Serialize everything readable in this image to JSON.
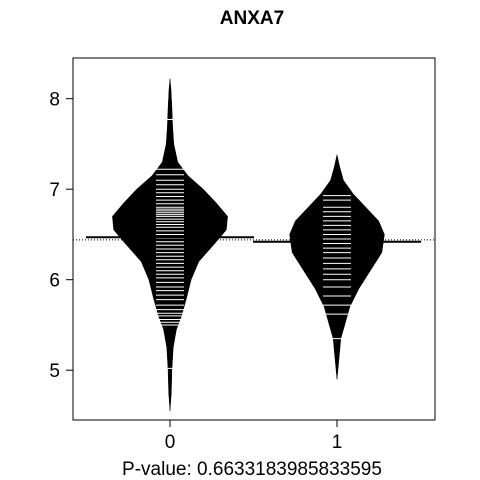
{
  "chart_data": {
    "type": "beanplot",
    "title": "ANXA7",
    "xlabel": "P-value: 0.6633183985833595",
    "ylabel": "",
    "categories": [
      "0",
      "1"
    ],
    "ylim": [
      4.45,
      8.45
    ],
    "yticks": [
      5,
      6,
      7,
      8
    ],
    "overall_mean": 6.44,
    "grid": false,
    "legend": "none",
    "groups": [
      {
        "name": "0",
        "mean": 6.47,
        "min": 4.55,
        "max": 8.22,
        "density": [
          [
            4.55,
            0.0
          ],
          [
            4.75,
            0.02
          ],
          [
            5.0,
            0.03
          ],
          [
            5.25,
            0.05
          ],
          [
            5.45,
            0.1
          ],
          [
            5.6,
            0.18
          ],
          [
            5.8,
            0.26
          ],
          [
            6.0,
            0.33
          ],
          [
            6.2,
            0.45
          ],
          [
            6.4,
            0.7
          ],
          [
            6.55,
            0.88
          ],
          [
            6.7,
            0.9
          ],
          [
            6.85,
            0.72
          ],
          [
            7.0,
            0.52
          ],
          [
            7.15,
            0.28
          ],
          [
            7.3,
            0.12
          ],
          [
            7.5,
            0.06
          ],
          [
            7.7,
            0.04
          ],
          [
            7.9,
            0.03
          ],
          [
            8.1,
            0.015
          ],
          [
            8.22,
            0.0
          ]
        ],
        "points": [
          5.02,
          5.5,
          5.53,
          5.56,
          5.6,
          5.63,
          5.67,
          5.72,
          5.78,
          5.83,
          5.88,
          5.92,
          5.97,
          6.02,
          6.06,
          6.1,
          6.14,
          6.18,
          6.22,
          6.26,
          6.3,
          6.34,
          6.38,
          6.42,
          6.46,
          6.5,
          6.54,
          6.58,
          6.61,
          6.64,
          6.67,
          6.7,
          6.72,
          6.74,
          6.76,
          6.78,
          6.8,
          6.84,
          6.88,
          6.92,
          6.96,
          7.0,
          7.05,
          7.1,
          7.16,
          7.22,
          7.77
        ]
      },
      {
        "name": "1",
        "mean": 6.42,
        "min": 4.9,
        "max": 7.38,
        "density": [
          [
            4.9,
            0.0
          ],
          [
            5.05,
            0.02
          ],
          [
            5.2,
            0.04
          ],
          [
            5.35,
            0.06
          ],
          [
            5.5,
            0.12
          ],
          [
            5.7,
            0.2
          ],
          [
            5.9,
            0.34
          ],
          [
            6.1,
            0.52
          ],
          [
            6.3,
            0.7
          ],
          [
            6.5,
            0.74
          ],
          [
            6.65,
            0.65
          ],
          [
            6.8,
            0.45
          ],
          [
            6.95,
            0.25
          ],
          [
            7.1,
            0.1
          ],
          [
            7.25,
            0.04
          ],
          [
            7.38,
            0.0
          ]
        ],
        "points": [
          5.35,
          5.62,
          5.72,
          5.82,
          5.92,
          6.0,
          6.06,
          6.12,
          6.18,
          6.24,
          6.3,
          6.35,
          6.4,
          6.45,
          6.5,
          6.55,
          6.6,
          6.65,
          6.7,
          6.75,
          6.8,
          6.88,
          6.93
        ]
      }
    ]
  }
}
